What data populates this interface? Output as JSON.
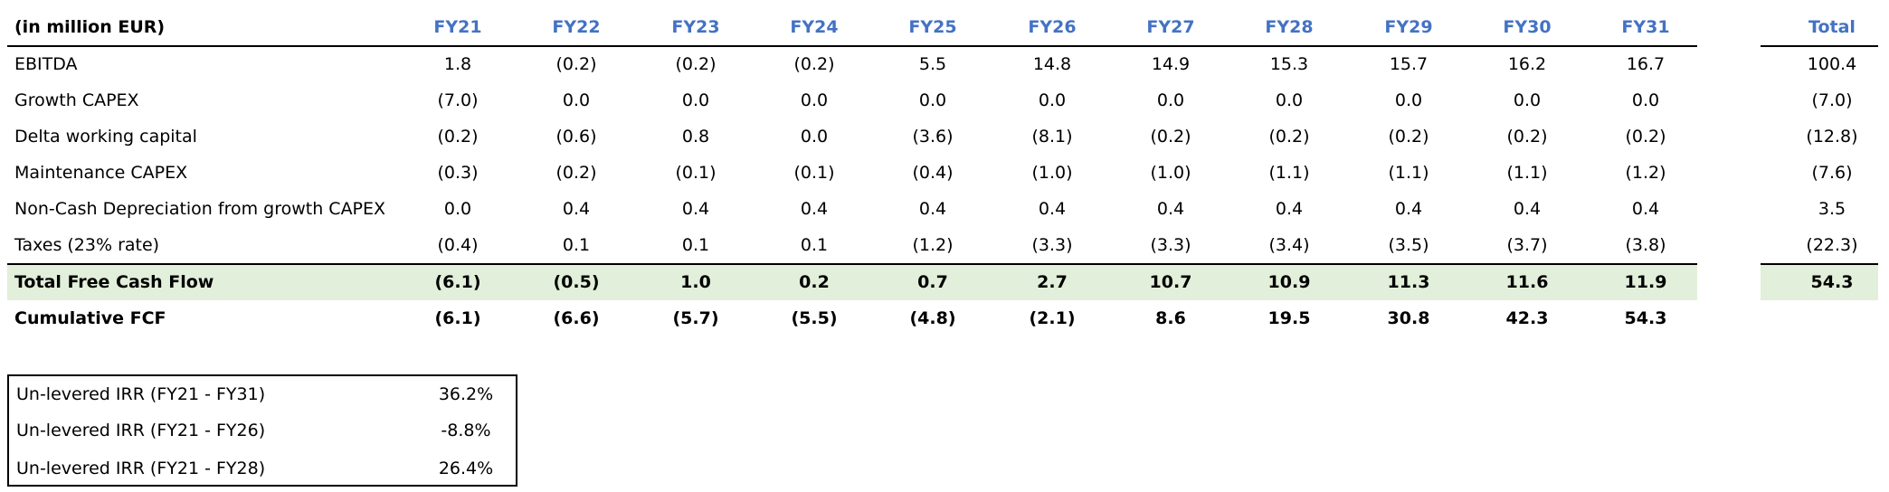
{
  "table": {
    "unit_label": "(in million EUR)",
    "years": [
      "FY21",
      "FY22",
      "FY23",
      "FY24",
      "FY25",
      "FY26",
      "FY27",
      "FY28",
      "FY29",
      "FY30",
      "FY31"
    ],
    "total_label": "Total",
    "rows": [
      {
        "label": "EBITDA",
        "values": [
          "1.8",
          "(0.2)",
          "(0.2)",
          "(0.2)",
          "5.5",
          "14.8",
          "14.9",
          "15.3",
          "15.7",
          "16.2",
          "16.7"
        ],
        "total": "100.4"
      },
      {
        "label": "Growth CAPEX",
        "values": [
          "(7.0)",
          "0.0",
          "0.0",
          "0.0",
          "0.0",
          "0.0",
          "0.0",
          "0.0",
          "0.0",
          "0.0",
          "0.0"
        ],
        "total": "(7.0)"
      },
      {
        "label": "Delta working capital",
        "values": [
          "(0.2)",
          "(0.6)",
          "0.8",
          "0.0",
          "(3.6)",
          "(8.1)",
          "(0.2)",
          "(0.2)",
          "(0.2)",
          "(0.2)",
          "(0.2)"
        ],
        "total": "(12.8)"
      },
      {
        "label": "Maintenance CAPEX",
        "values": [
          "(0.3)",
          "(0.2)",
          "(0.1)",
          "(0.1)",
          "(0.4)",
          "(1.0)",
          "(1.0)",
          "(1.1)",
          "(1.1)",
          "(1.1)",
          "(1.2)"
        ],
        "total": "(7.6)"
      },
      {
        "label": "Non-Cash Depreciation from growth CAPEX",
        "values": [
          "0.0",
          "0.4",
          "0.4",
          "0.4",
          "0.4",
          "0.4",
          "0.4",
          "0.4",
          "0.4",
          "0.4",
          "0.4"
        ],
        "total": "3.5"
      },
      {
        "label": "Taxes (23% rate)",
        "values": [
          "(0.4)",
          "0.1",
          "0.1",
          "0.1",
          "(1.2)",
          "(3.3)",
          "(3.3)",
          "(3.4)",
          "(3.5)",
          "(3.7)",
          "(3.8)"
        ],
        "total": "(22.3)"
      },
      {
        "label": "Total Free Cash Flow",
        "values": [
          "(6.1)",
          "(0.5)",
          "1.0",
          "0.2",
          "0.7",
          "2.7",
          "10.7",
          "10.9",
          "11.3",
          "11.6",
          "11.9"
        ],
        "total": "54.3"
      },
      {
        "label": "Cumulative FCF",
        "values": [
          "(6.1)",
          "(6.6)",
          "(5.7)",
          "(5.5)",
          "(4.8)",
          "(2.1)",
          "8.6",
          "19.5",
          "30.8",
          "42.3",
          "54.3"
        ],
        "total": ""
      }
    ]
  },
  "irr": [
    {
      "label": "Un-levered IRR (FY21 - FY31)",
      "value": "36.2%"
    },
    {
      "label": "Un-levered IRR (FY21 - FY26)",
      "value": "-8.8%"
    },
    {
      "label": "Un-levered IRR (FY21 - FY28)",
      "value": "26.4%"
    }
  ],
  "colors": {
    "header_accent": "#4472C4",
    "highlight_band": "#E2EFDA"
  }
}
